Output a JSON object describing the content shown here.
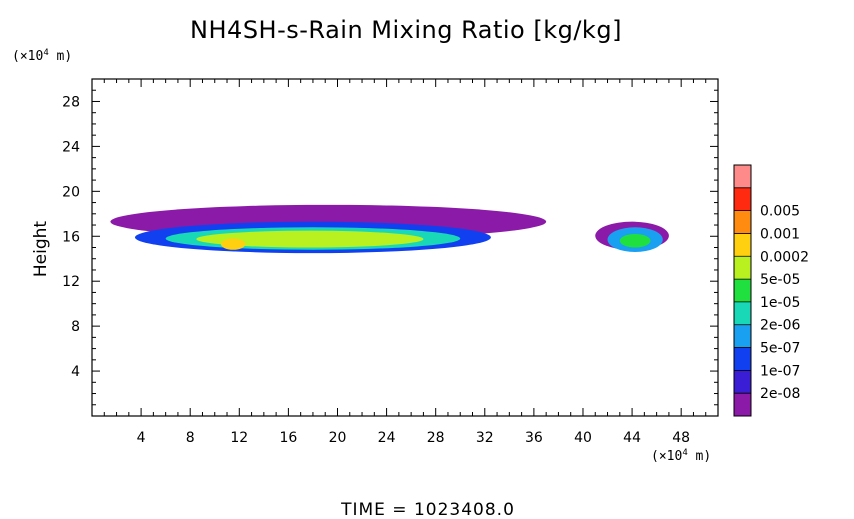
{
  "chart_data": {
    "type": "heatmap",
    "title": "NH4SH-s-Rain Mixing Ratio [kg/kg]",
    "ylabel": "Height",
    "x_unit": {
      "prefix": "(×10",
      "exp": "4",
      "suffix": " m)"
    },
    "y_unit": {
      "prefix": "(×10",
      "exp": "4",
      "suffix": " m)"
    },
    "xlim": [
      0,
      51
    ],
    "ylim": [
      0,
      30
    ],
    "x_ticks": [
      "4",
      "8",
      "12",
      "16",
      "20",
      "24",
      "28",
      "32",
      "36",
      "40",
      "44",
      "48"
    ],
    "y_ticks": [
      "4",
      "8",
      "12",
      "16",
      "20",
      "24",
      "28"
    ],
    "colorbar": {
      "labels": [
        "2e-08",
        "1e-07",
        "5e-07",
        "2e-06",
        "1e-05",
        "5e-05",
        "0.0002",
        "0.001",
        "0.005"
      ],
      "colors": [
        "#8c1aa8",
        "#3a1ed6",
        "#1040f0",
        "#1aa0f0",
        "#18d8b8",
        "#20e040",
        "#b8f020",
        "#ffd010",
        "#ff8c10",
        "#ff2a10",
        "#ff8a8a"
      ]
    },
    "regions": [
      {
        "x": [
          1.5,
          37.0
        ],
        "y": [
          15.8,
          18.8
        ],
        "level": 0
      },
      {
        "x": [
          41.0,
          47.0
        ],
        "y": [
          14.8,
          17.3
        ],
        "level": 0
      },
      {
        "x": [
          3.5,
          32.5
        ],
        "y": [
          14.5,
          17.3
        ],
        "level": 2
      },
      {
        "x": [
          6.0,
          30.0
        ],
        "y": [
          14.8,
          16.8
        ],
        "level": 4
      },
      {
        "x": [
          8.5,
          27.0
        ],
        "y": [
          15.0,
          16.5
        ],
        "level": 6
      },
      {
        "x": [
          10.5,
          12.5
        ],
        "y": [
          14.8,
          15.8
        ],
        "level": 7
      },
      {
        "x": [
          42.0,
          46.5
        ],
        "y": [
          14.6,
          16.8
        ],
        "level": 3
      },
      {
        "x": [
          43.0,
          45.5
        ],
        "y": [
          15.0,
          16.2
        ],
        "level": 5
      }
    ]
  },
  "footer": {
    "time_label": "TIME = 1023408.0"
  }
}
